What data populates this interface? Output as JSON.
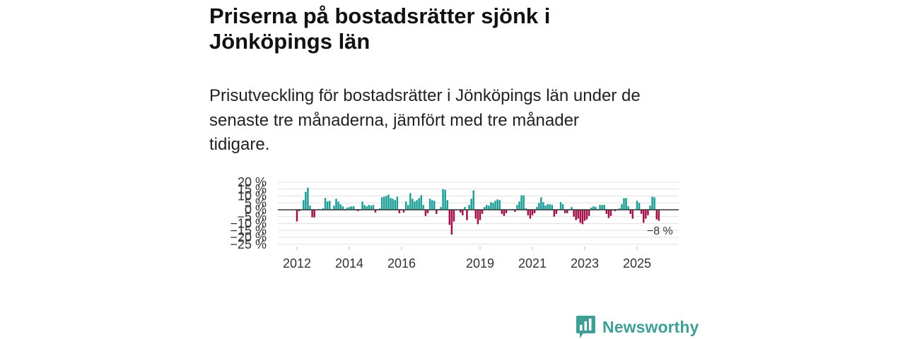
{
  "chart_data": {
    "type": "bar",
    "title_lines": [
      "Priserna på bostadsrätter sjönk i",
      "Jönköpings län"
    ],
    "subtitle_lines": [
      "Prisutveckling för bostadsrätter i Jönköpings län under de",
      "senaste tre månaderna, jämfört med tre månader",
      "tidigare."
    ],
    "start_year": 2012,
    "start_month": 1,
    "ylim": [
      -25,
      20
    ],
    "values": [
      -8.5,
      -1,
      0.5,
      7,
      13,
      16,
      3,
      -5.5,
      -5.5,
      0.3,
      0.5,
      0.2,
      1,
      8.5,
      6,
      6.5,
      0.5,
      3,
      8,
      6,
      4,
      2.5,
      -0.5,
      1.5,
      2,
      2.5,
      2.5,
      0.5,
      -1,
      0.5,
      6,
      3.5,
      2.5,
      3.5,
      3,
      3.5,
      -2,
      0.5,
      1,
      9,
      9.5,
      10,
      11,
      8.5,
      8,
      7,
      9.5,
      -2.5,
      0.5,
      -2,
      6,
      3.5,
      12,
      8,
      6,
      7,
      8.5,
      10.5,
      3.5,
      -4.5,
      -2.5,
      8,
      7,
      6.5,
      -3,
      0.5,
      2,
      15,
      14.5,
      7,
      -11,
      -18,
      -8.5,
      0.5,
      0.3,
      -2,
      -4,
      2,
      -7.5,
      3.5,
      8,
      14,
      -6.5,
      -10.5,
      -7.5,
      -3,
      2,
      3.5,
      3,
      5.5,
      5,
      6.5,
      7.5,
      7,
      -3,
      -4.5,
      -2.5,
      0.3,
      0.5,
      0.5,
      -1.5,
      3.5,
      6,
      10.5,
      10.5,
      1,
      -4,
      -6.5,
      -4,
      -2.5,
      2,
      5,
      9,
      5.5,
      3,
      4,
      4,
      3.5,
      -5,
      -3,
      0.5,
      5.5,
      4,
      -2.5,
      -2.5,
      0.5,
      2,
      -5,
      -7.5,
      -6.5,
      -9.5,
      -10.5,
      -8,
      -7,
      -4.5,
      1.5,
      2.5,
      2,
      0.5,
      3.5,
      3.5,
      3.5,
      -3,
      -6,
      -4.5,
      -0.5,
      -1,
      0.3,
      1,
      4,
      8.5,
      8.5,
      2.5,
      -3,
      -6.5,
      0.3,
      6.5,
      5,
      -3,
      -9.5,
      -6.5,
      -4,
      3,
      9.5,
      9,
      -7,
      -8
    ],
    "y_ticks": [
      {
        "value": 20,
        "label": "20 %"
      },
      {
        "value": 15,
        "label": "15 %"
      },
      {
        "value": 10,
        "label": "10 %"
      },
      {
        "value": 5,
        "label": "5 %"
      },
      {
        "value": 0,
        "label": "0 %"
      },
      {
        "value": -5,
        "label": "−5 %"
      },
      {
        "value": -10,
        "label": "−10 %"
      },
      {
        "value": -15,
        "label": "−15 %"
      },
      {
        "value": -20,
        "label": "−20 %"
      },
      {
        "value": -25,
        "label": "−25 %"
      }
    ],
    "x_ticks": [
      {
        "year": 2012,
        "label": "2012"
      },
      {
        "year": 2014,
        "label": "2014"
      },
      {
        "year": 2016,
        "label": "2016"
      },
      {
        "year": 2019,
        "label": "2019"
      },
      {
        "year": 2021,
        "label": "2021"
      },
      {
        "year": 2023,
        "label": "2023"
      },
      {
        "year": 2025,
        "label": "2025"
      }
    ],
    "annotation": {
      "label": "−8 %",
      "value": -8
    }
  },
  "logo": {
    "text": "Newsworthy",
    "icon": "bar-chart-speech-icon"
  },
  "colors": {
    "positive": "#1f9e97",
    "negative": "#a3114a",
    "zero_line": "#333333",
    "grid": "#e2e2e2",
    "brand": "#3f9f97"
  }
}
